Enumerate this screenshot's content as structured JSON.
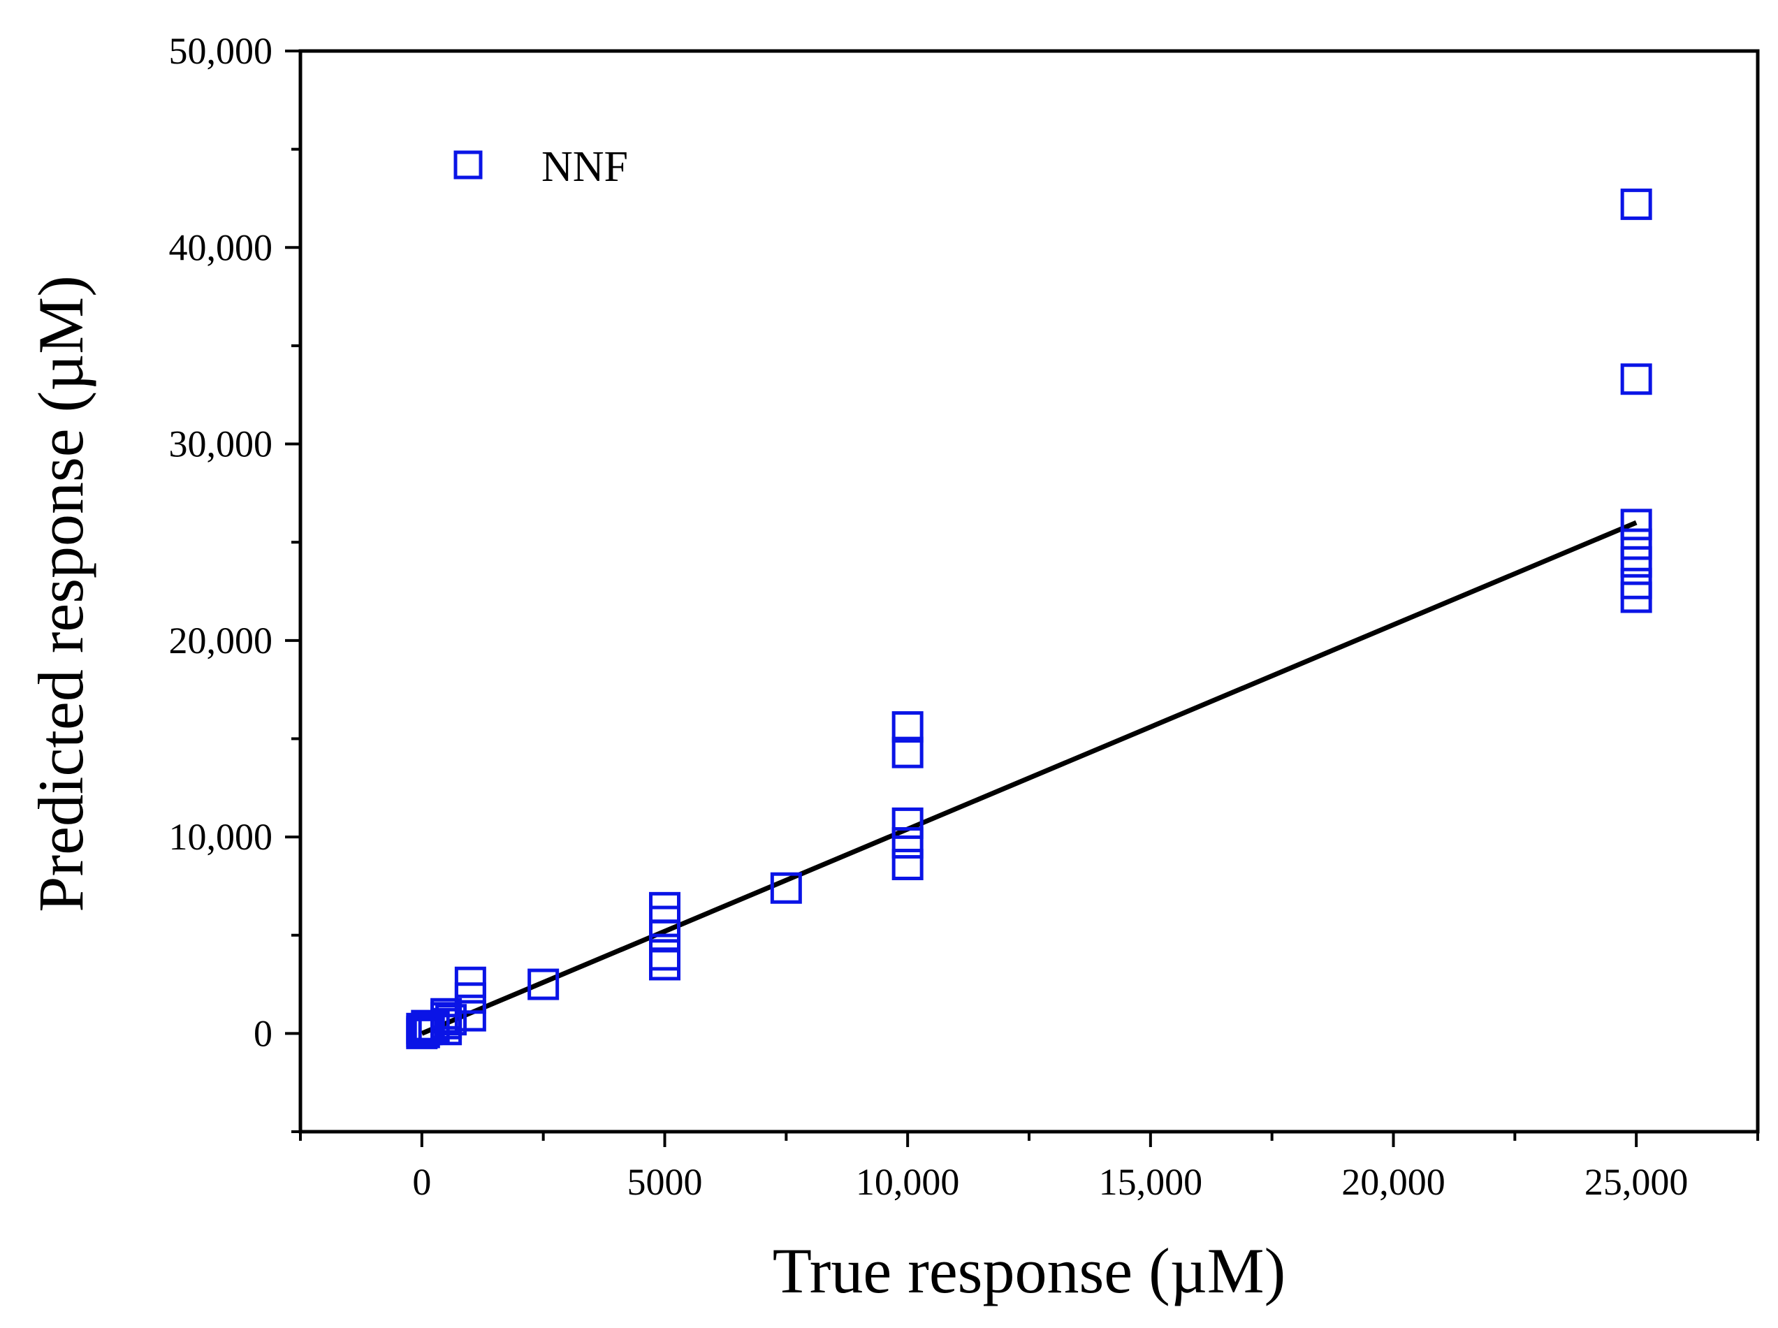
{
  "chart_data": {
    "type": "scatter",
    "title": "",
    "xlabel": "True response (µM)",
    "ylabel": "Predicted response (µM)",
    "xlim": [
      -2500,
      27500
    ],
    "ylim": [
      -5000,
      50000
    ],
    "x_ticks": [
      0,
      5000,
      10000,
      15000,
      20000,
      25000
    ],
    "x_tick_labels": [
      "0",
      "5000",
      "10,000",
      "15,000",
      "20,000",
      "25,000"
    ],
    "y_ticks": [
      0,
      10000,
      20000,
      30000,
      40000,
      50000
    ],
    "y_tick_labels": [
      "0",
      "10,000",
      "20,000",
      "30,000",
      "40,000",
      "50,000"
    ],
    "grid": false,
    "legend": {
      "position": "top-left",
      "entries": [
        "NNF"
      ]
    },
    "series": [
      {
        "name": "NNF",
        "marker": "open-square",
        "color": "#0a14e6",
        "points": [
          [
            0,
            0
          ],
          [
            0,
            100
          ],
          [
            0,
            250
          ],
          [
            50,
            50
          ],
          [
            100,
            200
          ],
          [
            150,
            300
          ],
          [
            100,
            400
          ],
          [
            250,
            350
          ],
          [
            500,
            200
          ],
          [
            500,
            500
          ],
          [
            500,
            800
          ],
          [
            500,
            1000
          ],
          [
            600,
            700
          ],
          [
            1000,
            900
          ],
          [
            1000,
            1800
          ],
          [
            1000,
            2600
          ],
          [
            2500,
            2500
          ],
          [
            5000,
            3500
          ],
          [
            5000,
            4000
          ],
          [
            5000,
            5000
          ],
          [
            5000,
            5700
          ],
          [
            5000,
            6400
          ],
          [
            7500,
            7400
          ],
          [
            10000,
            8600
          ],
          [
            10000,
            9700
          ],
          [
            10000,
            10700
          ],
          [
            10000,
            14300
          ],
          [
            10000,
            15600
          ],
          [
            25000,
            22200
          ],
          [
            25000,
            22900
          ],
          [
            25000,
            24000
          ],
          [
            25000,
            24900
          ],
          [
            25000,
            25900
          ],
          [
            25000,
            33300
          ],
          [
            25000,
            42200
          ]
        ]
      },
      {
        "name": "fit",
        "type": "line",
        "color": "#000000",
        "x": [
          0,
          25000
        ],
        "y": [
          0,
          26000
        ]
      }
    ]
  }
}
